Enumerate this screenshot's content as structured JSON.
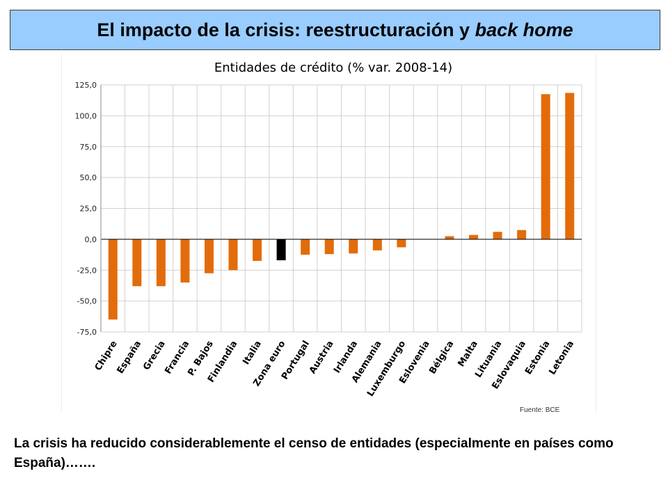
{
  "slide": {
    "title_main": "El impacto de la crisis: reestructuración y ",
    "title_em": "back home",
    "source": "Fuente: BCE",
    "caption": "La crisis ha reducido considerablemente el censo de entidades (especialmente en países como España)……."
  },
  "colors": {
    "bar": "#e36c0a",
    "highlight": "#000000",
    "title_bg": "#99ccff"
  },
  "chart_data": {
    "type": "bar",
    "title": "Entidades de crédito (% var. 2008-14)",
    "categories": [
      "Chipre",
      "España",
      "Grecia",
      "Francia",
      "P. Bajos",
      "Finlandia",
      "Italia",
      "Zona euro",
      "Portugal",
      "Austria",
      "Irlanda",
      "Alemania",
      "Luxemburgo",
      "Eslovenia",
      "Bélgica",
      "Malta",
      "Lituania",
      "Eslovaquia",
      "Estonia",
      "Letonia"
    ],
    "values": [
      -65,
      -38,
      -38,
      -35,
      -27.5,
      -25,
      -17.5,
      -17,
      -12.5,
      -12,
      -11.5,
      -9,
      -6.5,
      0,
      2.5,
      3.5,
      6,
      7.5,
      117.5,
      118.5
    ],
    "highlight": "Zona euro",
    "ylim": [
      -75,
      125
    ],
    "yticks": [
      125,
      100,
      75,
      50,
      25,
      0,
      -25,
      -50,
      -75
    ],
    "ytick_labels": [
      "125,0",
      "100,0",
      "75,0",
      "50,0",
      "25,0",
      "0,0",
      "-25,0",
      "-50,0",
      "-75,0"
    ],
    "xlabel": "",
    "ylabel": "",
    "grid": true
  }
}
